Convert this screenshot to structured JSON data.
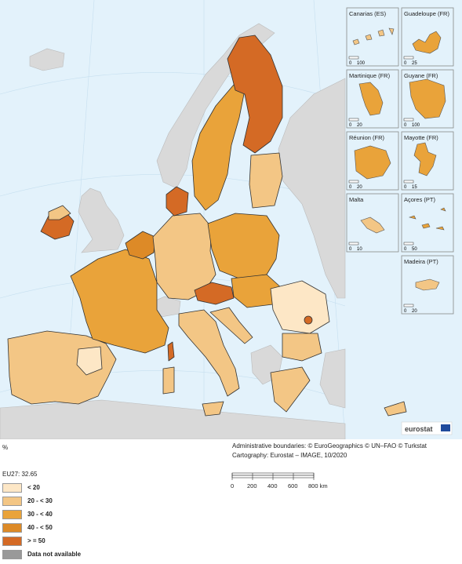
{
  "unit": "%",
  "eu_average": "EU27: 32.65",
  "credits": {
    "line1": "Administrative boundaries: © EuroGeographics © UN–FAO © Turkstat",
    "line2": "Cartography: Eurostat – IMAGE, 10/2020"
  },
  "logo": "eurostat",
  "legend": [
    {
      "label": "< 20",
      "color": "#fde7c6"
    },
    {
      "label": "20 - < 30",
      "color": "#f3c685"
    },
    {
      "label": "30 - < 40",
      "color": "#e9a33a"
    },
    {
      "label": "40 - < 50",
      "color": "#dd8a27"
    },
    {
      "label": "> = 50",
      "color": "#d46a25"
    },
    {
      "label": "Data not available",
      "color": "#999999"
    }
  ],
  "colors": {
    "sea": "#e3f2fb",
    "non_eu": "#d9d9d9",
    "border": "#333333"
  },
  "scalebar": {
    "ticks": [
      "0",
      "200",
      "400",
      "600",
      "800 km"
    ]
  },
  "insets": [
    {
      "name": "Canarias (ES)",
      "scale": [
        "0",
        "100"
      ]
    },
    {
      "name": "Guadeloupe (FR)",
      "scale": [
        "0",
        "25"
      ]
    },
    {
      "name": "Martinique (FR)",
      "scale": [
        "0",
        "20"
      ]
    },
    {
      "name": "Guyane (FR)",
      "scale": [
        "0",
        "100"
      ]
    },
    {
      "name": "Réunion (FR)",
      "scale": [
        "0",
        "20"
      ]
    },
    {
      "name": "Mayotte (FR)",
      "scale": [
        "0",
        "15"
      ]
    },
    {
      "name": "Malta",
      "scale": [
        "0",
        "10"
      ]
    },
    {
      "name": "Açores (PT)",
      "scale": [
        "0",
        "50"
      ]
    },
    {
      "name": "Madeira (PT)",
      "scale": [
        "0",
        "20"
      ]
    }
  ]
}
